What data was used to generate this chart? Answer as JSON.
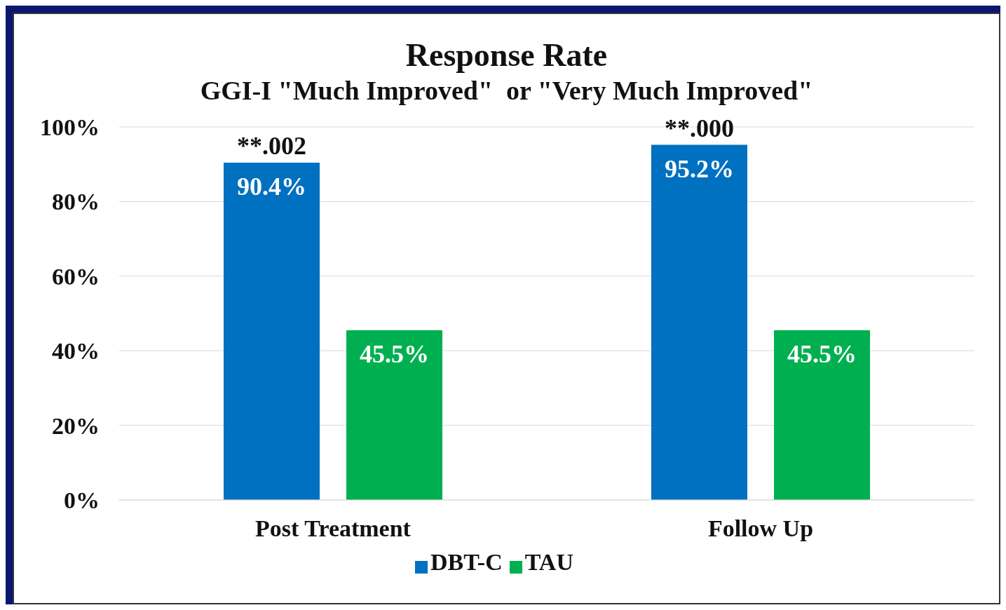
{
  "chart_data": {
    "type": "bar",
    "title": "Response Rate",
    "subtitle": "GGI-I \"Much Improved\"  or \"Very Much Improved\"",
    "categories": [
      "Post Treatment",
      "Follow Up"
    ],
    "series": [
      {
        "name": "DBT-C",
        "color": "#0070c0",
        "values": [
          90.4,
          95.2
        ],
        "value_labels": [
          "90.4%",
          "95.2%"
        ]
      },
      {
        "name": "TAU",
        "color": "#00b050",
        "values": [
          45.5,
          45.5
        ],
        "value_labels": [
          "45.5%",
          "45.5%"
        ]
      }
    ],
    "ylim": [
      0,
      100
    ],
    "yticks": [
      {
        "value": 0,
        "label": "0%"
      },
      {
        "value": 20,
        "label": "20%"
      },
      {
        "value": 40,
        "label": "40%"
      },
      {
        "value": 60,
        "label": "60%"
      },
      {
        "value": 80,
        "label": "80%"
      },
      {
        "value": 100,
        "label": "100%"
      }
    ],
    "grid": "y",
    "legend": "bottom",
    "annotations": [
      "**.002",
      "**.000"
    ]
  }
}
